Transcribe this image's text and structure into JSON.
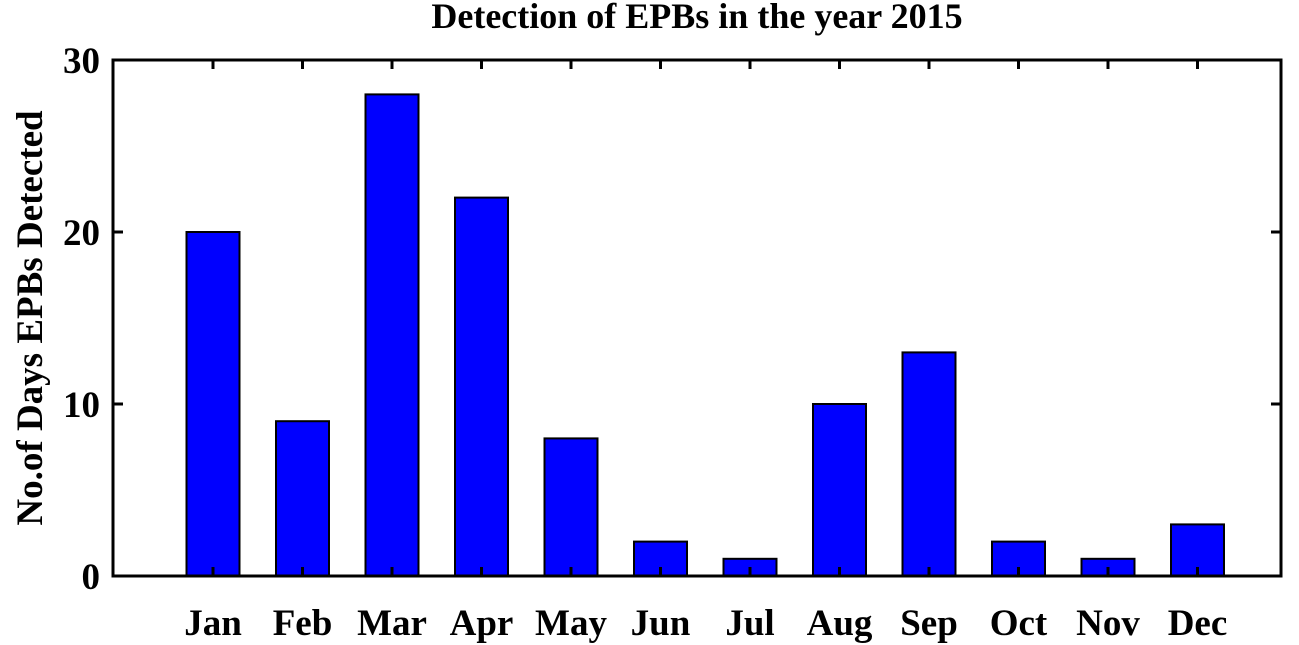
{
  "chart_data": {
    "type": "bar",
    "title": "Detection of EPBs in the year 2015",
    "xlabel": "",
    "ylabel": "No.of Days EPBs Detected",
    "categories": [
      "Jan",
      "Feb",
      "Mar",
      "Apr",
      "May",
      "Jun",
      "Jul",
      "Aug",
      "Sep",
      "Oct",
      "Nov",
      "Dec"
    ],
    "values": [
      20,
      9,
      28,
      22,
      8,
      2,
      1,
      10,
      13,
      2,
      1,
      3
    ],
    "ylim": [
      0,
      30
    ],
    "yticks": [
      0,
      10,
      20,
      30
    ],
    "grid": false,
    "bar_color": "#0000ff",
    "bar_edge_color": "#000000"
  }
}
